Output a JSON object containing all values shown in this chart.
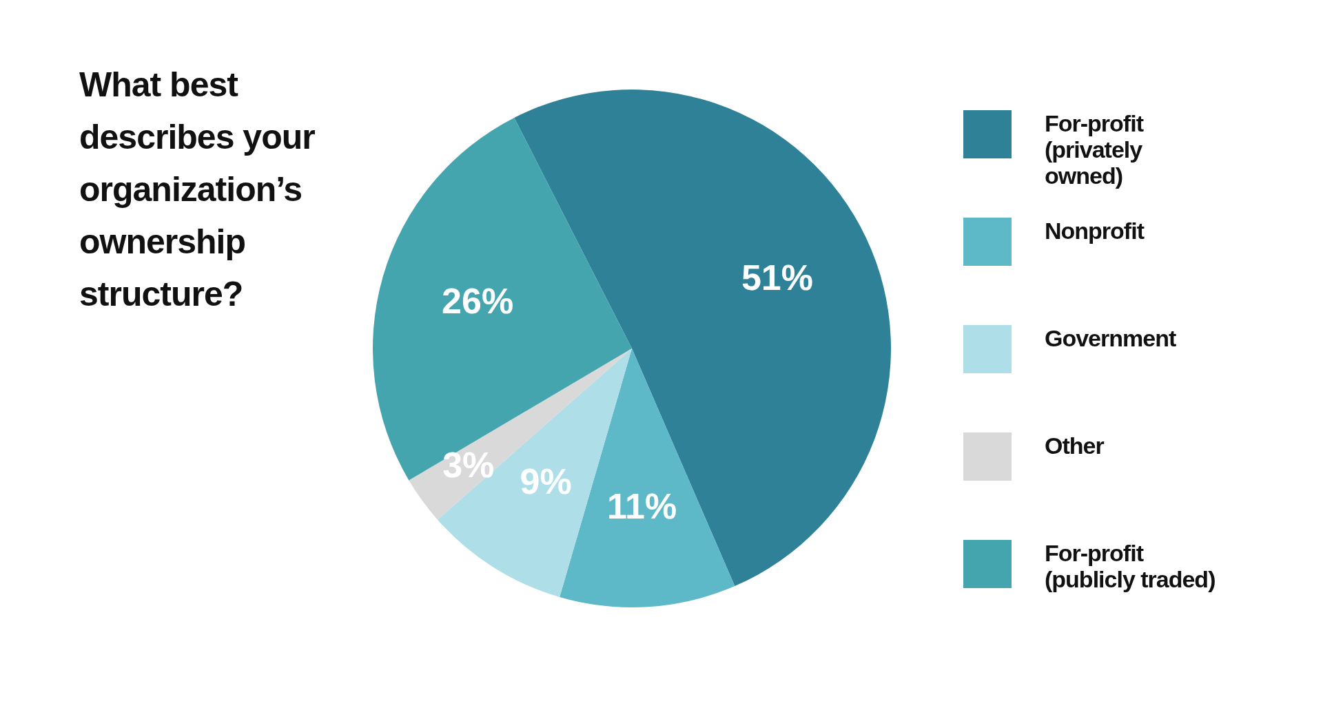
{
  "chart_data": {
    "type": "pie",
    "title": "What best describes your organization’s ownership structure?",
    "categories": [
      "For-profit (privately owned)",
      "Nonprofit",
      "Government",
      "Other",
      "For-profit (publicly traded)"
    ],
    "values": [
      51,
      11,
      9,
      3,
      26
    ],
    "colors": [
      "#2e8196",
      "#5db8c8",
      "#aedfe9",
      "#d9d9d9",
      "#44a5ae"
    ],
    "value_labels": [
      "51%",
      "11%",
      "9%",
      "3%",
      "26%"
    ],
    "legend": "right"
  }
}
